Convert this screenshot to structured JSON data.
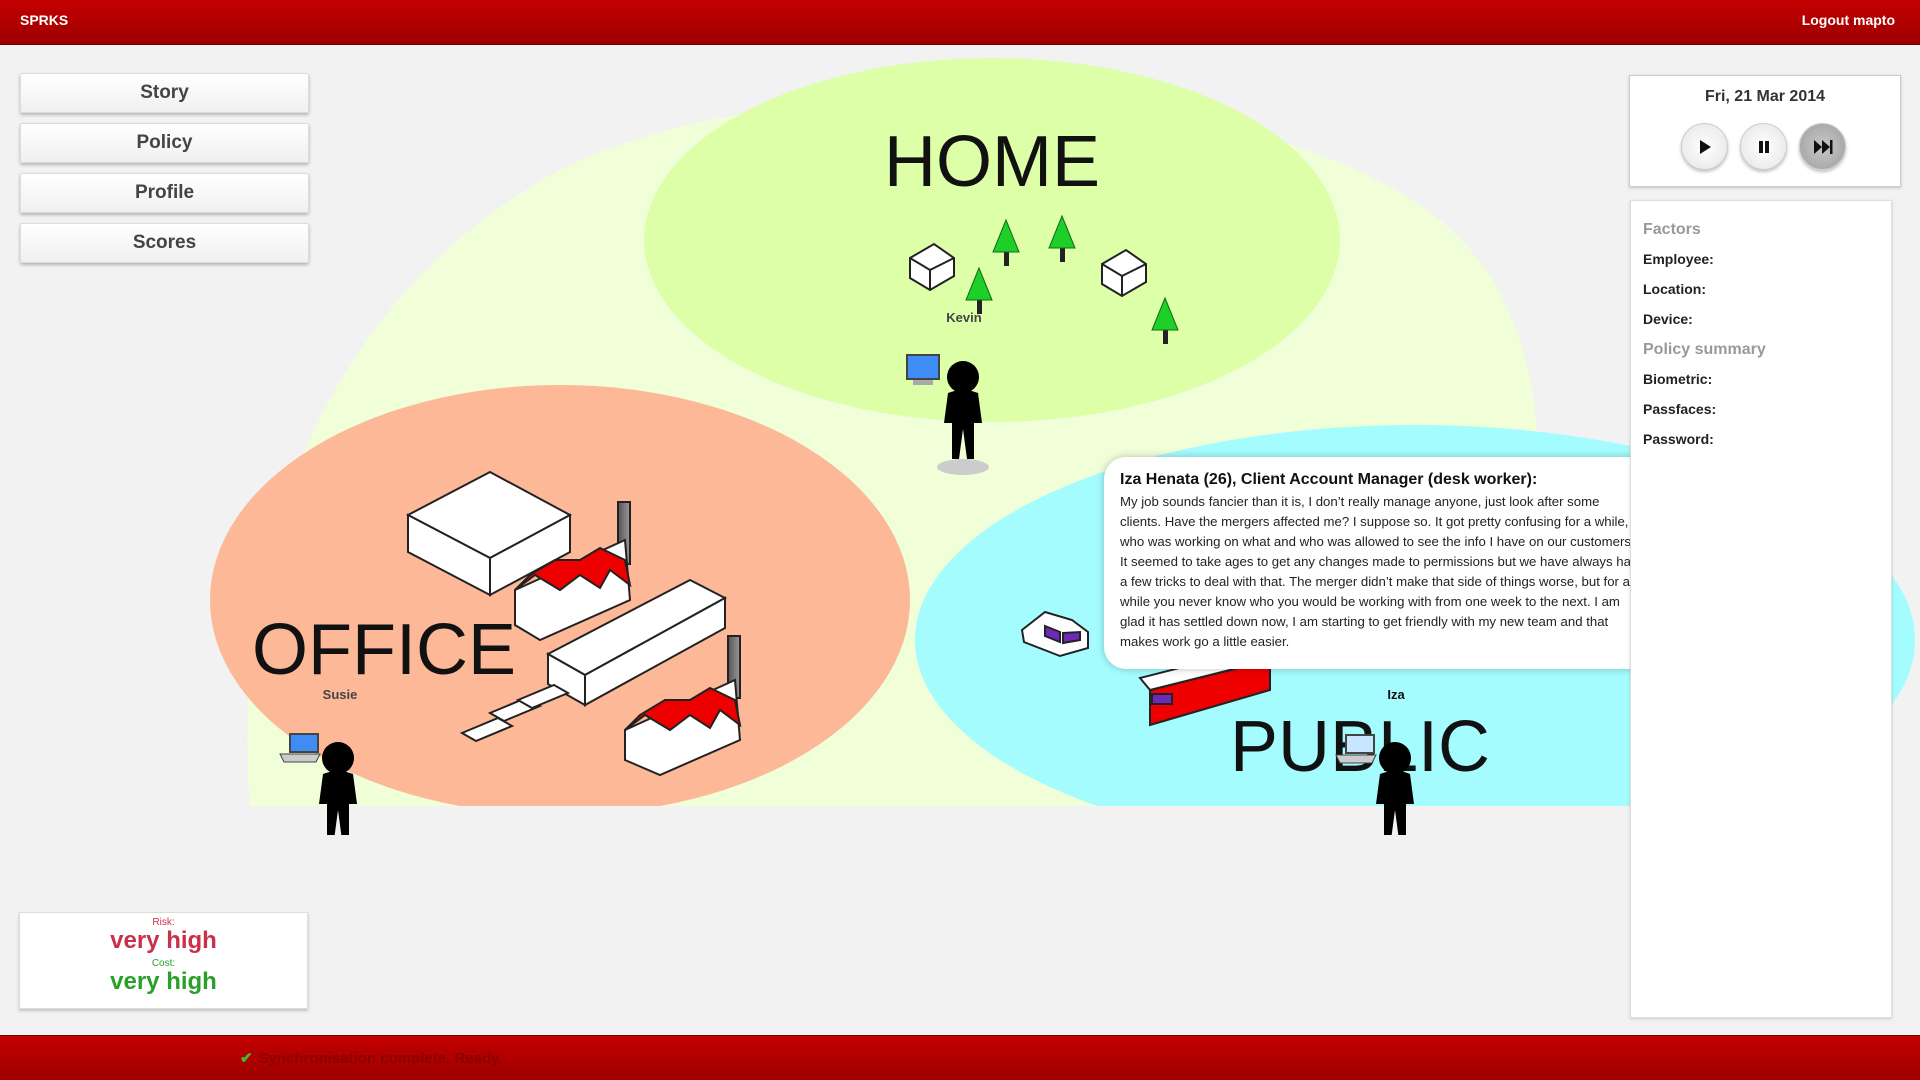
{
  "app": {
    "title": "SPRKS",
    "logout_label": "Logout mapto"
  },
  "nav": {
    "items": [
      {
        "label": "Story"
      },
      {
        "label": "Policy"
      },
      {
        "label": "Profile"
      },
      {
        "label": "Scores"
      }
    ]
  },
  "scores": {
    "risk_label": "Risk:",
    "risk_value": "very high",
    "risk_color": "#c9304a",
    "cost_label": "Cost:",
    "cost_value": "very high",
    "cost_color": "#2aa02a"
  },
  "map": {
    "zones": [
      {
        "name": "HOME",
        "color": "#dcffa8"
      },
      {
        "name": "OFFICE",
        "color": "#fdb898"
      },
      {
        "name": "PUBLIC",
        "color": "#a4fcfe"
      }
    ],
    "background_color": "#f0ffd8",
    "characters": [
      {
        "name": "Kevin",
        "device": "desktop-icon"
      },
      {
        "name": "Susie",
        "device": "laptop-icon"
      },
      {
        "name": "Iza",
        "device": "laptop-icon"
      }
    ]
  },
  "story": {
    "title": "Iza Henata (26), Client Account Manager (desk worker):",
    "text": "My job sounds fancier than it is, I don’t really manage anyone, just look after some clients. Have the mergers affected me? I suppose so. It got pretty confusing for a while, who was working on what and who was allowed to see the info I have on our customers. It seemed to take ages to get any changes made to permissions but we have always had a few tricks to deal with that. The merger didn’t make that side of things worse, but for a while you never know who you would be working with from one week to the next. I am glad it has settled down now, I am starting to get friendly with my new team and that makes work go a little easier."
  },
  "clock": {
    "date": "Fri, 21 Mar 2014",
    "play_icon": "play-icon",
    "pause_icon": "pause-icon",
    "fast_forward_icon": "fast-forward-icon"
  },
  "factors": {
    "heading": "Factors",
    "rows": [
      {
        "label": "Employee:"
      },
      {
        "label": "Location:"
      },
      {
        "label": "Device:"
      }
    ]
  },
  "policy_summary": {
    "heading": "Policy summary",
    "rows": [
      {
        "label": "Biometric:"
      },
      {
        "label": "Passfaces:"
      },
      {
        "label": "Password:"
      }
    ]
  },
  "status": {
    "text": "Synchronisation complete. Ready."
  }
}
